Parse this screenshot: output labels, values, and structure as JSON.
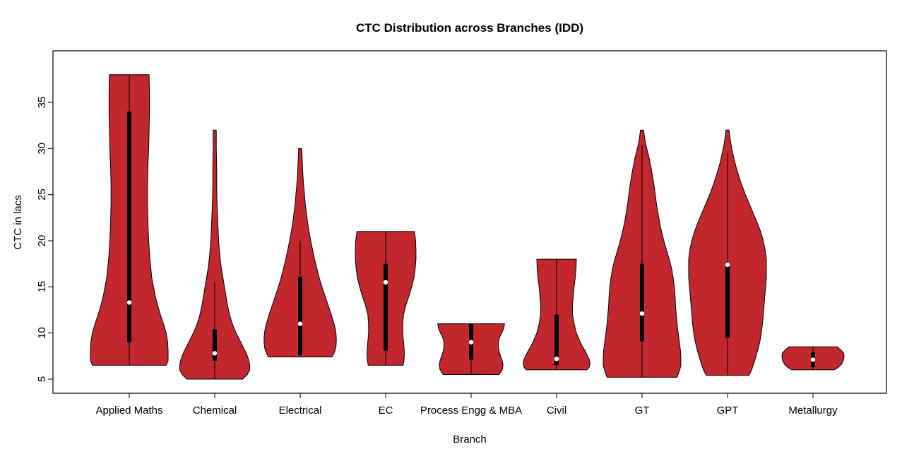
{
  "chart_data": {
    "type": "violin",
    "title": "CTC Distribution across Branches (IDD)",
    "xlabel": "Branch",
    "ylabel": "CTC in lacs",
    "ylim": [
      3.5,
      40.6
    ],
    "yticks": [
      5,
      10,
      15,
      20,
      25,
      30,
      35
    ],
    "grid": false,
    "legend": "none",
    "style": {
      "violin_fill": "#C1272D",
      "violin_stroke": "#000000",
      "box_color": "#000000",
      "median_dot_color": "#FFFFFF",
      "border_color": "#000000",
      "background": "#FFFFFF"
    },
    "series": [
      {
        "branch": "Applied Maths",
        "range": [
          6.5,
          38
        ],
        "q1": 9.0,
        "median": 13.3,
        "q3": 34.0,
        "whiskers": [
          6.5,
          38
        ],
        "profile": [
          [
            6.5,
            0.95
          ],
          [
            7,
            1.0
          ],
          [
            8,
            1.0
          ],
          [
            9,
            0.99
          ],
          [
            10,
            0.95
          ],
          [
            11,
            0.88
          ],
          [
            12,
            0.8
          ],
          [
            13,
            0.73
          ],
          [
            14,
            0.67
          ],
          [
            16,
            0.58
          ],
          [
            18,
            0.53
          ],
          [
            20,
            0.5
          ],
          [
            22,
            0.48
          ],
          [
            24,
            0.47
          ],
          [
            26,
            0.47
          ],
          [
            28,
            0.48
          ],
          [
            30,
            0.5
          ],
          [
            32,
            0.51
          ],
          [
            34,
            0.52
          ],
          [
            36,
            0.52
          ],
          [
            38,
            0.51
          ]
        ]
      },
      {
        "branch": "Chemical",
        "range": [
          5,
          32
        ],
        "q1": 7.0,
        "median": 7.8,
        "q3": 10.4,
        "whiskers": [
          5,
          15.6
        ],
        "profile": [
          [
            5,
            0.72
          ],
          [
            5.5,
            0.84
          ],
          [
            6,
            0.9
          ],
          [
            6.5,
            0.9
          ],
          [
            7,
            0.88
          ],
          [
            7.5,
            0.84
          ],
          [
            8,
            0.79
          ],
          [
            8.5,
            0.73
          ],
          [
            9,
            0.67
          ],
          [
            9.5,
            0.61
          ],
          [
            10,
            0.55
          ],
          [
            11,
            0.45
          ],
          [
            12,
            0.38
          ],
          [
            13,
            0.33
          ],
          [
            14,
            0.29
          ],
          [
            15,
            0.25
          ],
          [
            16,
            0.21
          ],
          [
            17,
            0.17
          ],
          [
            18,
            0.14
          ],
          [
            19,
            0.12
          ],
          [
            20,
            0.1
          ],
          [
            22,
            0.08
          ],
          [
            24,
            0.06
          ],
          [
            26,
            0.05
          ],
          [
            28,
            0.05
          ],
          [
            30,
            0.04
          ],
          [
            32,
            0.04
          ]
        ]
      },
      {
        "branch": "Electrical",
        "range": [
          7.4,
          30
        ],
        "q1": 7.6,
        "median": 11.0,
        "q3": 16.1,
        "whiskers": [
          7.4,
          20
        ],
        "profile": [
          [
            7.4,
            0.82
          ],
          [
            8,
            0.89
          ],
          [
            8.5,
            0.92
          ],
          [
            9,
            0.93
          ],
          [
            9.5,
            0.93
          ],
          [
            10,
            0.92
          ],
          [
            10.5,
            0.9
          ],
          [
            11,
            0.87
          ],
          [
            12,
            0.8
          ],
          [
            13,
            0.72
          ],
          [
            14,
            0.64
          ],
          [
            15,
            0.56
          ],
          [
            16,
            0.49
          ],
          [
            17,
            0.43
          ],
          [
            18,
            0.37
          ],
          [
            19,
            0.32
          ],
          [
            20,
            0.27
          ],
          [
            21,
            0.23
          ],
          [
            22,
            0.19
          ],
          [
            23,
            0.16
          ],
          [
            24,
            0.13
          ],
          [
            25,
            0.11
          ],
          [
            26,
            0.09
          ],
          [
            27,
            0.07
          ],
          [
            28,
            0.06
          ],
          [
            29,
            0.05
          ],
          [
            30,
            0.04
          ]
        ]
      },
      {
        "branch": "EC",
        "range": [
          6.5,
          21
        ],
        "q1": 8.1,
        "median": 15.5,
        "q3": 17.5,
        "whiskers": [
          6.5,
          21
        ],
        "profile": [
          [
            6.5,
            0.45
          ],
          [
            7,
            0.47
          ],
          [
            7.5,
            0.48
          ],
          [
            8,
            0.48
          ],
          [
            8.5,
            0.47
          ],
          [
            9,
            0.46
          ],
          [
            10,
            0.44
          ],
          [
            11,
            0.44
          ],
          [
            12,
            0.46
          ],
          [
            13,
            0.52
          ],
          [
            14,
            0.6
          ],
          [
            15,
            0.67
          ],
          [
            16,
            0.73
          ],
          [
            17,
            0.76
          ],
          [
            18,
            0.78
          ],
          [
            19,
            0.78
          ],
          [
            20,
            0.77
          ],
          [
            21,
            0.74
          ]
        ]
      },
      {
        "branch": "Process Engg & MBA",
        "range": [
          5.5,
          11
        ],
        "q1": 7.1,
        "median": 9.0,
        "q3": 11.0,
        "whiskers": [
          5.5,
          11
        ],
        "profile": [
          [
            5.5,
            0.72
          ],
          [
            6,
            0.8
          ],
          [
            6.5,
            0.82
          ],
          [
            7,
            0.8
          ],
          [
            7.5,
            0.76
          ],
          [
            8,
            0.72
          ],
          [
            8.5,
            0.7
          ],
          [
            9,
            0.7
          ],
          [
            9.5,
            0.73
          ],
          [
            10,
            0.79
          ],
          [
            10.5,
            0.84
          ],
          [
            11,
            0.86
          ]
        ]
      },
      {
        "branch": "Civil",
        "range": [
          6,
          18
        ],
        "q1": 6.5,
        "median": 7.2,
        "q3": 12.0,
        "whiskers": [
          6,
          18
        ],
        "profile": [
          [
            6,
            0.78
          ],
          [
            6.3,
            0.84
          ],
          [
            6.7,
            0.86
          ],
          [
            7,
            0.85
          ],
          [
            7.5,
            0.8
          ],
          [
            8,
            0.74
          ],
          [
            8.5,
            0.67
          ],
          [
            9,
            0.61
          ],
          [
            10,
            0.51
          ],
          [
            11,
            0.45
          ],
          [
            12,
            0.41
          ],
          [
            13,
            0.41
          ],
          [
            14,
            0.43
          ],
          [
            15,
            0.45
          ],
          [
            16,
            0.48
          ],
          [
            17,
            0.5
          ],
          [
            18,
            0.51
          ]
        ]
      },
      {
        "branch": "GT",
        "range": [
          5.2,
          32
        ],
        "q1": 9.1,
        "median": 12.1,
        "q3": 17.5,
        "whiskers": [
          5.2,
          30.4
        ],
        "profile": [
          [
            5.2,
            0.9
          ],
          [
            6,
            0.97
          ],
          [
            6.5,
            1.0
          ],
          [
            7,
            1.0
          ],
          [
            8,
            0.99
          ],
          [
            9,
            0.96
          ],
          [
            10,
            0.93
          ],
          [
            11,
            0.9
          ],
          [
            12,
            0.88
          ],
          [
            13,
            0.86
          ],
          [
            14,
            0.85
          ],
          [
            15,
            0.83
          ],
          [
            16,
            0.8
          ],
          [
            17,
            0.76
          ],
          [
            18,
            0.7
          ],
          [
            19,
            0.63
          ],
          [
            20,
            0.56
          ],
          [
            21,
            0.5
          ],
          [
            22,
            0.45
          ],
          [
            23,
            0.41
          ],
          [
            24,
            0.37
          ],
          [
            25,
            0.34
          ],
          [
            26,
            0.31
          ],
          [
            27,
            0.27
          ],
          [
            28,
            0.23
          ],
          [
            29,
            0.18
          ],
          [
            30,
            0.12
          ],
          [
            31,
            0.07
          ],
          [
            32,
            0.04
          ]
        ]
      },
      {
        "branch": "GPT",
        "range": [
          5.4,
          32
        ],
        "q1": 9.5,
        "median": 17.4,
        "q3": 17.6,
        "whiskers": [
          5.4,
          29.5
        ],
        "profile": [
          [
            5.4,
            0.55
          ],
          [
            6,
            0.62
          ],
          [
            7,
            0.7
          ],
          [
            8,
            0.77
          ],
          [
            9,
            0.83
          ],
          [
            10,
            0.87
          ],
          [
            11,
            0.9
          ],
          [
            12,
            0.92
          ],
          [
            13,
            0.94
          ],
          [
            14,
            0.96
          ],
          [
            15,
            0.98
          ],
          [
            16,
            1.0
          ],
          [
            17,
            1.0
          ],
          [
            18,
            1.0
          ],
          [
            19,
            0.97
          ],
          [
            20,
            0.92
          ],
          [
            21,
            0.85
          ],
          [
            22,
            0.76
          ],
          [
            23,
            0.66
          ],
          [
            24,
            0.56
          ],
          [
            25,
            0.46
          ],
          [
            26,
            0.37
          ],
          [
            27,
            0.29
          ],
          [
            28,
            0.22
          ],
          [
            29,
            0.16
          ],
          [
            30,
            0.11
          ],
          [
            31,
            0.07
          ],
          [
            32,
            0.04
          ]
        ]
      },
      {
        "branch": "Metallurgy",
        "range": [
          6,
          8.5
        ],
        "q1": 6.3,
        "median": 7.1,
        "q3": 7.9,
        "whiskers": [
          6,
          8.5
        ],
        "profile": [
          [
            6,
            0.55
          ],
          [
            6.3,
            0.66
          ],
          [
            6.6,
            0.73
          ],
          [
            7,
            0.78
          ],
          [
            7.4,
            0.8
          ],
          [
            7.8,
            0.79
          ],
          [
            8.1,
            0.73
          ],
          [
            8.5,
            0.62
          ]
        ]
      }
    ]
  }
}
